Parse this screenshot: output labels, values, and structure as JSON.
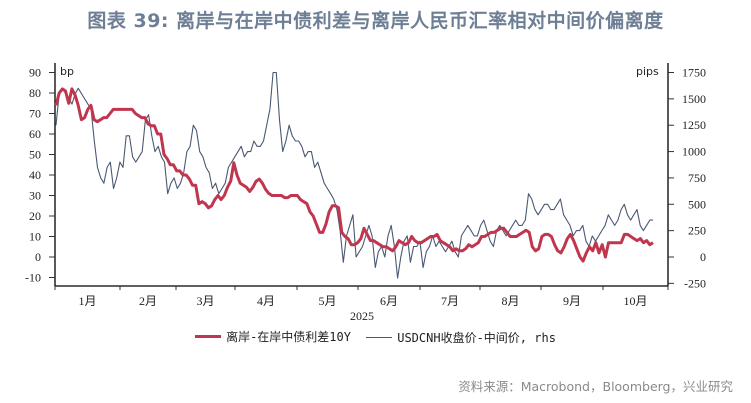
{
  "title": "图表 39: 离岸与在岸中债利差与离岸人民币汇率相对中间价偏离度",
  "source": "资料来源：Macrobond，Bloomberg，兴业研究",
  "chart_data": {
    "type": "line",
    "title": "图表 39: 离岸与在岸中债利差与离岸人民币汇率相对中间价偏离度",
    "xlabel": "2025",
    "ylabel": "bp",
    "ylabel_right": "pips",
    "ylim": [
      -10,
      90
    ],
    "ylim_right": [
      -250,
      1750
    ],
    "yticks_left": [
      90,
      80,
      70,
      60,
      50,
      40,
      30,
      20,
      10,
      0,
      -10
    ],
    "yticks_right": [
      1750,
      1500,
      1250,
      1000,
      750,
      500,
      250,
      0,
      -250
    ],
    "categories": [
      "1月",
      "2月",
      "3月",
      "4月",
      "5月",
      "6月",
      "7月",
      "8月",
      "9月",
      "10月"
    ],
    "year_label": "2025",
    "grid": false,
    "legend_position": "bottom",
    "series": [
      {
        "name": "离岸-在岸中债利差10Y",
        "axis": "left",
        "color": "#c0364f",
        "values": [
          74,
          80,
          82,
          81,
          75,
          82,
          79,
          74,
          67,
          68,
          72,
          74,
          67,
          66,
          67,
          68,
          68,
          70,
          72,
          72,
          72,
          72,
          72,
          72,
          72,
          70,
          69,
          68,
          68,
          65,
          64,
          64,
          60,
          60,
          50,
          48,
          45,
          45,
          42,
          42,
          40,
          40,
          38,
          35,
          35,
          26,
          27,
          26,
          24,
          25,
          28,
          30,
          28,
          30,
          34,
          37,
          46,
          40,
          36,
          35,
          34,
          32,
          34,
          37,
          38,
          36,
          33,
          31,
          30,
          30,
          30,
          30,
          29,
          29,
          30,
          30,
          30,
          28,
          27,
          26,
          22,
          20,
          16,
          12,
          12,
          16,
          22,
          25,
          25,
          24,
          12,
          10,
          9,
          6,
          6,
          7,
          9,
          14,
          11,
          8,
          8,
          7,
          6,
          5,
          5,
          4,
          3,
          5,
          8,
          7,
          6,
          7,
          10,
          8,
          7,
          7,
          8,
          9,
          10,
          10,
          11,
          8,
          7,
          6,
          5,
          3,
          4,
          3,
          3,
          4,
          6,
          5,
          6,
          7,
          10,
          10,
          11,
          12,
          12,
          13,
          14,
          14,
          12,
          10,
          10,
          10,
          11,
          12,
          13,
          12,
          5,
          3,
          4,
          10,
          11,
          11,
          10,
          6,
          3,
          2,
          5,
          9,
          11,
          8,
          4,
          0,
          -2,
          2,
          5,
          3,
          7,
          2,
          6,
          0,
          7,
          7,
          7,
          7,
          7,
          11,
          11,
          10,
          9,
          8,
          9,
          7,
          8,
          6,
          7
        ]
      },
      {
        "name": "USDCNH收盘价-中间价, rhs",
        "axis": "right",
        "color": "#4a5874",
        "values": [
          1250,
          1550,
          1600,
          1550,
          1500,
          1450,
          1550,
          1600,
          1550,
          1500,
          1450,
          1400,
          1100,
          850,
          750,
          700,
          850,
          900,
          650,
          750,
          900,
          850,
          1150,
          1150,
          950,
          900,
          950,
          1000,
          1300,
          1350,
          1150,
          1000,
          1050,
          950,
          900,
          600,
          700,
          750,
          650,
          700,
          800,
          1000,
          1050,
          1250,
          1200,
          1000,
          950,
          850,
          800,
          650,
          700,
          600,
          650,
          700,
          850,
          900,
          950,
          1000,
          1050,
          950,
          1000,
          1000,
          1100,
          1050,
          1050,
          1100,
          1250,
          1400,
          1750,
          1750,
          1300,
          1000,
          1100,
          1250,
          1150,
          1100,
          1100,
          1050,
          950,
          1000,
          1000,
          850,
          900,
          800,
          700,
          650,
          600,
          550,
          450,
          250,
          -50,
          200,
          300,
          400,
          0,
          50,
          100,
          200,
          300,
          200,
          -100,
          50,
          100,
          0,
          200,
          300,
          100,
          -200,
          0,
          150,
          200,
          -50,
          100,
          100,
          150,
          -100,
          50,
          100,
          200,
          100,
          150,
          100,
          50,
          100,
          150,
          50,
          0,
          200,
          250,
          300,
          250,
          200,
          200,
          300,
          350,
          250,
          150,
          100,
          250,
          300,
          250,
          200,
          250,
          300,
          350,
          300,
          300,
          350,
          600,
          550,
          450,
          400,
          450,
          500,
          500,
          450,
          450,
          500,
          550,
          400,
          350,
          300,
          200,
          250,
          250,
          300,
          150,
          100,
          200,
          150,
          200,
          250,
          300,
          400,
          350,
          300,
          350,
          450,
          500,
          400,
          350,
          400,
          450,
          300,
          250,
          300,
          350,
          350
        ]
      }
    ]
  },
  "axes": {
    "left_unit": "bp",
    "right_unit": "pips"
  },
  "legend": {
    "items": [
      {
        "label": "离岸-在岸中债利差10Y",
        "color": "#c0364f"
      },
      {
        "label": "USDCNH收盘价-中间价, rhs",
        "color": "#4a5874"
      }
    ]
  }
}
